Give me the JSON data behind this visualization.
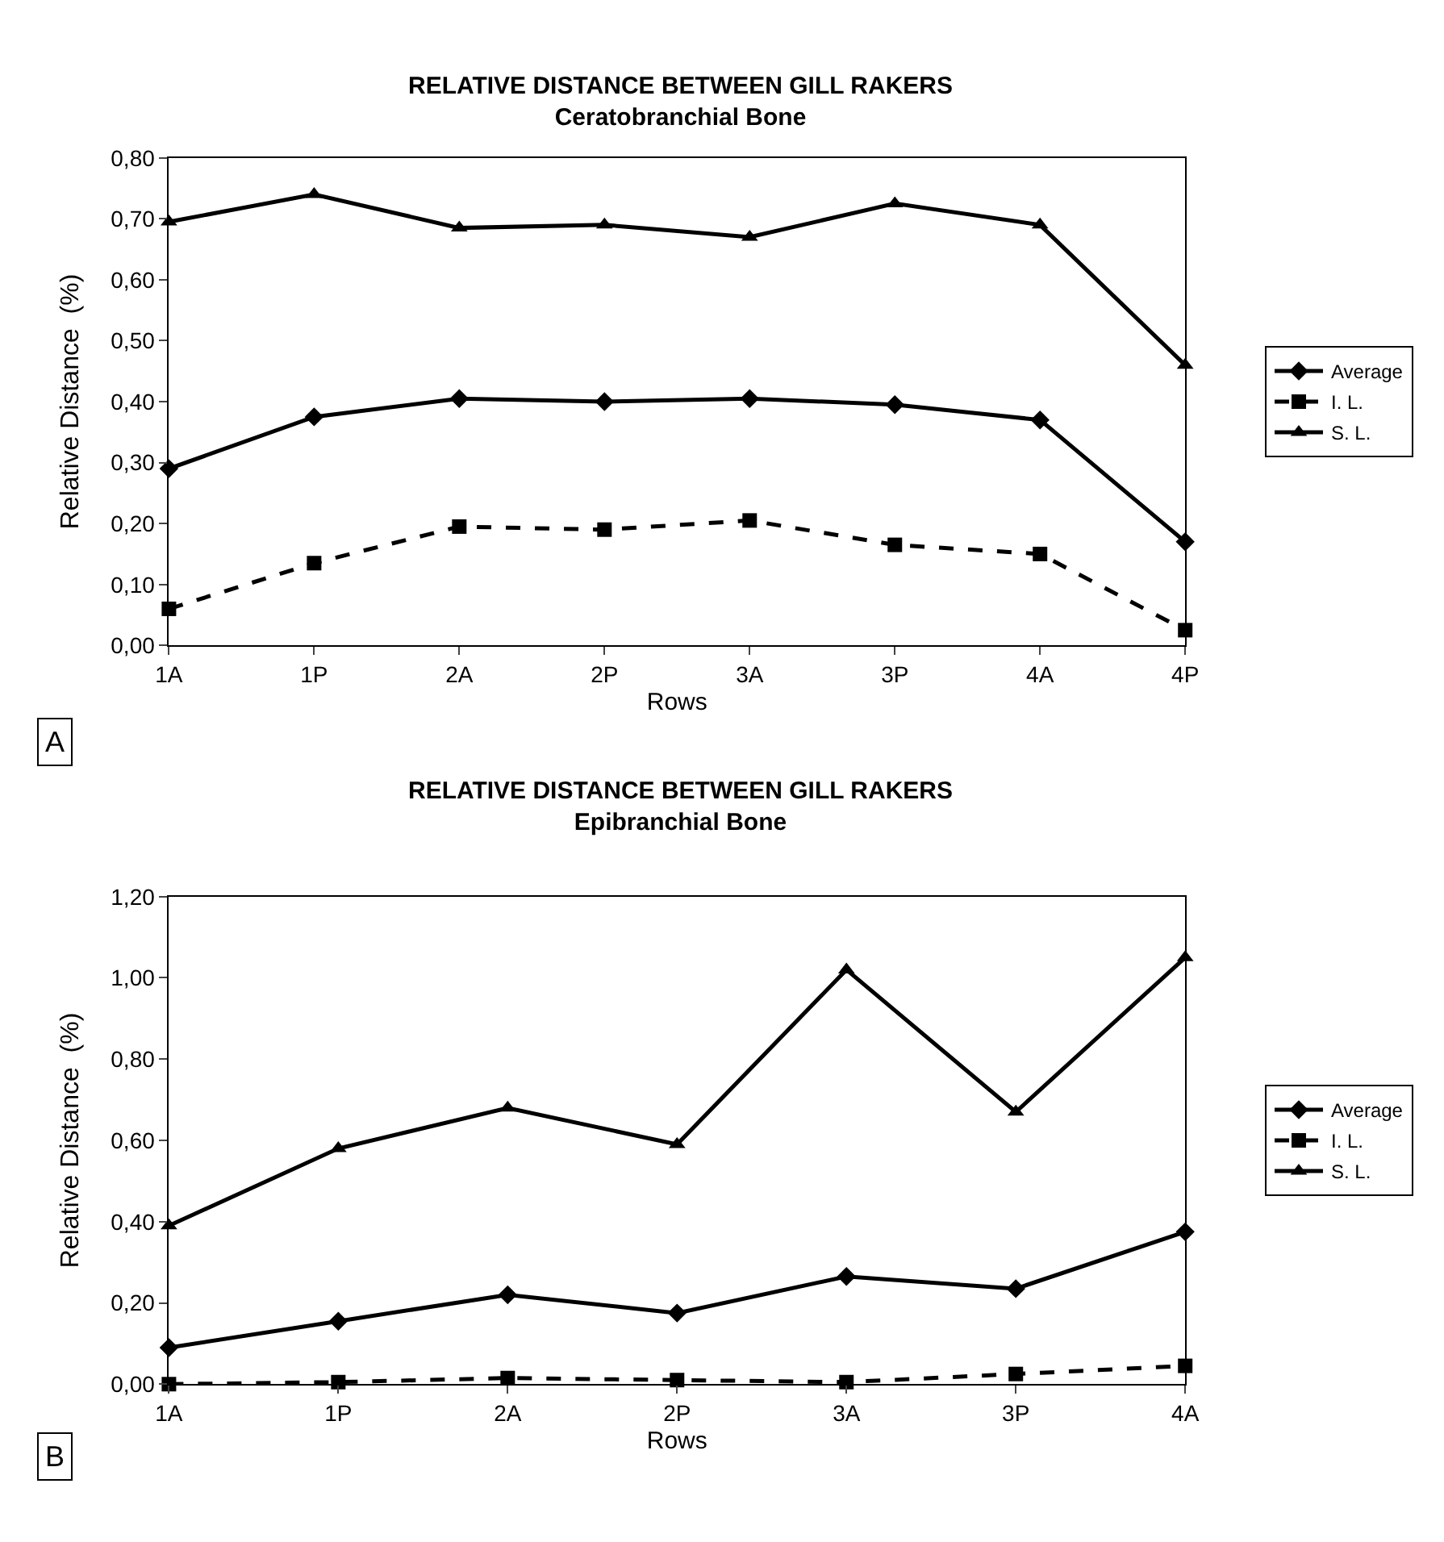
{
  "chart_data": [
    {
      "type": "line",
      "title": "RELATIVE DISTANCE BETWEEN GILL RAKERS",
      "subtitle": "Ceratobranchial Bone",
      "xlabel": "Rows",
      "ylabel": "Relative Distance  (%)",
      "categories": [
        "1A",
        "1P",
        "2A",
        "2P",
        "3A",
        "3P",
        "4A",
        "4P"
      ],
      "series": [
        {
          "name": "Average",
          "color": "#000000",
          "marker": "diamond",
          "line_style": "solid",
          "values": [
            0.29,
            0.375,
            0.405,
            0.4,
            0.405,
            0.395,
            0.37,
            0.17
          ]
        },
        {
          "name": "I. L.",
          "color": "#000000",
          "marker": "square",
          "line_style": "dashed",
          "values": [
            0.06,
            0.135,
            0.195,
            0.19,
            0.205,
            0.165,
            0.15,
            0.025
          ]
        },
        {
          "name": "S. L.",
          "color": "#000000",
          "marker": "triangle",
          "line_style": "solid",
          "values": [
            0.695,
            0.74,
            0.685,
            0.69,
            0.67,
            0.725,
            0.69,
            0.46
          ]
        }
      ],
      "ylim": [
        0,
        0.8
      ],
      "yticks": [
        {
          "value": 0,
          "label": "0,00"
        },
        {
          "value": 0.1,
          "label": "0,10"
        },
        {
          "value": 0.2,
          "label": "0,20"
        },
        {
          "value": 0.3,
          "label": "0,30"
        },
        {
          "value": 0.4,
          "label": "0,40"
        },
        {
          "value": 0.5,
          "label": "0,50"
        },
        {
          "value": 0.6,
          "label": "0,60"
        },
        {
          "value": 0.7,
          "label": "0,70"
        },
        {
          "value": 0.8,
          "label": "0,80"
        }
      ],
      "grid": false,
      "legend": "right",
      "annotations": [
        "A"
      ]
    },
    {
      "type": "line",
      "title": "RELATIVE DISTANCE BETWEEN GILL RAKERS",
      "subtitle": "Epibranchial Bone",
      "xlabel": "Rows",
      "ylabel": "Relative Distance  (%)",
      "categories": [
        "1A",
        "1P",
        "2A",
        "2P",
        "3A",
        "3P",
        "4A"
      ],
      "series": [
        {
          "name": "Average",
          "color": "#000000",
          "marker": "diamond",
          "line_style": "solid",
          "values": [
            0.09,
            0.155,
            0.22,
            0.175,
            0.265,
            0.235,
            0.375
          ]
        },
        {
          "name": "I. L.",
          "color": "#000000",
          "marker": "square",
          "line_style": "dashed",
          "values": [
            0.0,
            0.005,
            0.015,
            0.01,
            0.005,
            0.025,
            0.045
          ]
        },
        {
          "name": "S. L.",
          "color": "#000000",
          "marker": "triangle",
          "line_style": "solid",
          "values": [
            0.39,
            0.58,
            0.68,
            0.59,
            1.02,
            0.67,
            1.05
          ]
        }
      ],
      "ylim": [
        0,
        1.2
      ],
      "yticks": [
        {
          "value": 0,
          "label": "0,00"
        },
        {
          "value": 0.2,
          "label": "0,20"
        },
        {
          "value": 0.4,
          "label": "0,40"
        },
        {
          "value": 0.6,
          "label": "0,60"
        },
        {
          "value": 0.8,
          "label": "0,80"
        },
        {
          "value": 1.0,
          "label": "1,00"
        },
        {
          "value": 1.2,
          "label": "1,20"
        }
      ],
      "grid": false,
      "legend": "right",
      "annotations": [
        "B"
      ]
    }
  ]
}
